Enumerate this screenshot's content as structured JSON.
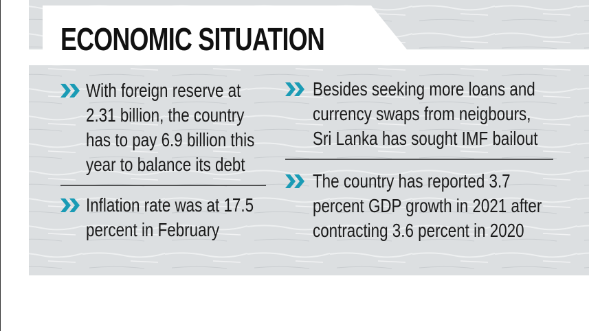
{
  "header": {
    "title": "ECONOMIC SITUATION"
  },
  "left": [
    {
      "lines": [
        "With foreign reserve at",
        "2.31 billion, the country",
        "has to pay 6.9 billion this",
        "year to balance its debt"
      ]
    },
    {
      "lines": [
        "Inflation rate was at 17.5",
        "percent in February"
      ]
    }
  ],
  "right": [
    {
      "lines": [
        "Besides seeking more loans and",
        "currency swaps from neigbours,",
        "Sri Lanka has sought IMF bailout"
      ]
    },
    {
      "lines": [
        "The country has reported 3.7",
        "percent GDP growth in 2021 after",
        "contracting 3.6 percent in 2020"
      ]
    }
  ]
}
